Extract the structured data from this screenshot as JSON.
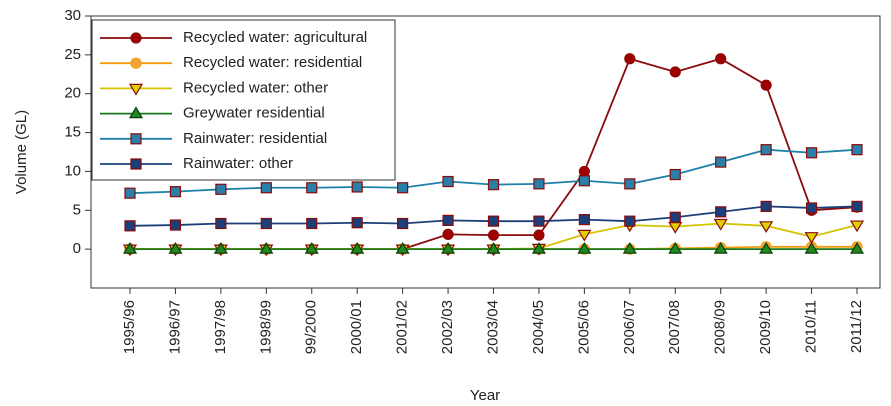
{
  "chart_data": {
    "type": "line",
    "xlabel": "Year",
    "ylabel": "Volume (GL)",
    "categories": [
      "1995/96",
      "1996/97",
      "1997/98",
      "1998/99",
      "99/2000",
      "2000/01",
      "2001/02",
      "2002/03",
      "2003/04",
      "2004/05",
      "2005/06",
      "2006/07",
      "2007/08",
      "2008/09",
      "2009/10",
      "2010/11",
      "2011/12"
    ],
    "ylim": [
      -5,
      30
    ],
    "yticks": [
      0,
      5,
      10,
      15,
      20,
      25,
      30
    ],
    "legend": "upper left",
    "series": [
      {
        "name": "Recycled water: agricultural",
        "color": "#8b0a0a",
        "marker": "circle",
        "marker_fill": "#a00000",
        "values": [
          0,
          0,
          0,
          0,
          0,
          0,
          0,
          1.9,
          1.8,
          1.8,
          10,
          24.5,
          22.8,
          24.5,
          21.1,
          5,
          5.4
        ]
      },
      {
        "name": "Recycled water: residential",
        "color": "#f39c12",
        "marker": "circle",
        "marker_fill": "#f7a23a",
        "values": [
          0,
          0,
          0,
          0,
          0,
          0,
          0,
          0,
          0,
          0,
          0,
          0,
          0.1,
          0.2,
          0.3,
          0.3,
          0.3
        ]
      },
      {
        "name": "Recycled water: other",
        "color": "#d4c400",
        "marker": "triangle-down",
        "marker_fill": "#e0d000",
        "values": [
          0,
          0,
          0,
          0,
          0,
          0,
          0,
          0,
          0,
          0.1,
          1.9,
          3.1,
          2.9,
          3.3,
          3,
          1.6,
          3.1
        ]
      },
      {
        "name": "Greywater residential",
        "color": "#1a7a1a",
        "marker": "triangle-up",
        "marker_fill": "#1e8a1e",
        "values": [
          0,
          0,
          0,
          0,
          0,
          0,
          0,
          0,
          0,
          0,
          0,
          0,
          0,
          0,
          0,
          0,
          0
        ]
      },
      {
        "name": "Rainwater: residential",
        "color": "#1f80a8",
        "marker": "square",
        "marker_fill": "#2a7fa8",
        "values": [
          7.2,
          7.4,
          7.7,
          7.9,
          7.9,
          8,
          7.9,
          8.7,
          8.3,
          8.4,
          8.8,
          8.4,
          9.6,
          11.2,
          12.8,
          12.4,
          12.8
        ]
      },
      {
        "name": "Rainwater: other",
        "color": "#1c3f7a",
        "marker": "square",
        "marker_fill": "#1c3f7a",
        "values": [
          3,
          3.1,
          3.3,
          3.3,
          3.3,
          3.4,
          3.3,
          3.7,
          3.6,
          3.6,
          3.8,
          3.6,
          4.1,
          4.8,
          5.5,
          5.3,
          5.5
        ]
      }
    ]
  }
}
